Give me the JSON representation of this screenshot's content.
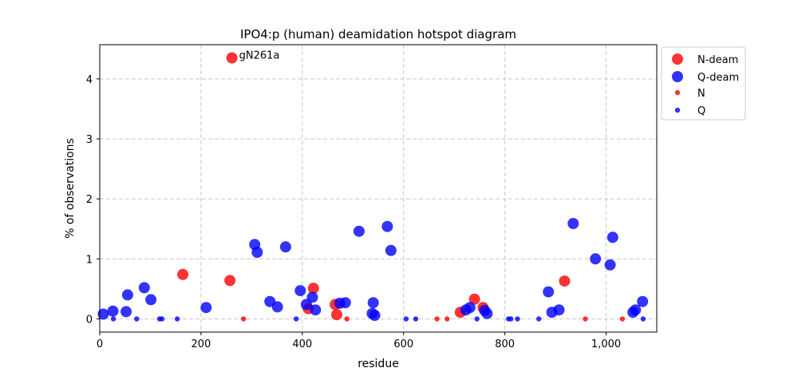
{
  "chart_data": {
    "type": "scatter",
    "title": "IPO4:p (human) deamidation hotspot diagram",
    "xlabel": "residue",
    "ylabel": "% of observations",
    "xlim": [
      0,
      1100
    ],
    "ylim": [
      -0.22,
      4.57
    ],
    "x_ticks": [
      0,
      200,
      400,
      600,
      800,
      1000
    ],
    "x_tick_labels": [
      "0",
      "200",
      "400",
      "600",
      "800",
      "1,000"
    ],
    "y_ticks": [
      0,
      1,
      2,
      3,
      4
    ],
    "y_tick_labels": [
      "0",
      "1",
      "2",
      "3",
      "4"
    ],
    "grid": true,
    "legend_position": "outside-right-top",
    "annotations": [
      {
        "text": "gN261a",
        "x": 261,
        "y": 4.35
      }
    ],
    "series": [
      {
        "name": "N-deam",
        "color": "#ff0000",
        "marker": "large",
        "points": [
          {
            "x": 164,
            "y": 0.74
          },
          {
            "x": 257,
            "y": 0.64
          },
          {
            "x": 261,
            "y": 4.35
          },
          {
            "x": 412,
            "y": 0.17
          },
          {
            "x": 422,
            "y": 0.51
          },
          {
            "x": 465,
            "y": 0.24
          },
          {
            "x": 468,
            "y": 0.07
          },
          {
            "x": 712,
            "y": 0.11
          },
          {
            "x": 740,
            "y": 0.33
          },
          {
            "x": 757,
            "y": 0.19
          },
          {
            "x": 918,
            "y": 0.63
          }
        ]
      },
      {
        "name": "Q-deam",
        "color": "#0000ff",
        "marker": "large",
        "points": [
          {
            "x": 7,
            "y": 0.08
          },
          {
            "x": 26,
            "y": 0.13
          },
          {
            "x": 52,
            "y": 0.12
          },
          {
            "x": 55,
            "y": 0.4
          },
          {
            "x": 88,
            "y": 0.52
          },
          {
            "x": 101,
            "y": 0.32
          },
          {
            "x": 210,
            "y": 0.19
          },
          {
            "x": 306,
            "y": 1.24
          },
          {
            "x": 311,
            "y": 1.11
          },
          {
            "x": 336,
            "y": 0.29
          },
          {
            "x": 351,
            "y": 0.2
          },
          {
            "x": 367,
            "y": 1.2
          },
          {
            "x": 396,
            "y": 0.47
          },
          {
            "x": 408,
            "y": 0.24
          },
          {
            "x": 420,
            "y": 0.36
          },
          {
            "x": 426,
            "y": 0.15
          },
          {
            "x": 474,
            "y": 0.26
          },
          {
            "x": 485,
            "y": 0.27
          },
          {
            "x": 512,
            "y": 1.46
          },
          {
            "x": 538,
            "y": 0.09
          },
          {
            "x": 540,
            "y": 0.27
          },
          {
            "x": 543,
            "y": 0.06
          },
          {
            "x": 568,
            "y": 1.54
          },
          {
            "x": 575,
            "y": 1.14
          },
          {
            "x": 723,
            "y": 0.15
          },
          {
            "x": 731,
            "y": 0.19
          },
          {
            "x": 760,
            "y": 0.14
          },
          {
            "x": 765,
            "y": 0.09
          },
          {
            "x": 886,
            "y": 0.45
          },
          {
            "x": 893,
            "y": 0.11
          },
          {
            "x": 907,
            "y": 0.15
          },
          {
            "x": 935,
            "y": 1.59
          },
          {
            "x": 979,
            "y": 1.0
          },
          {
            "x": 1008,
            "y": 0.9
          },
          {
            "x": 1013,
            "y": 1.36
          },
          {
            "x": 1053,
            "y": 0.11
          },
          {
            "x": 1058,
            "y": 0.15
          },
          {
            "x": 1072,
            "y": 0.29
          }
        ]
      },
      {
        "name": "N",
        "color": "#ff0000",
        "marker": "small",
        "points": [
          {
            "x": 284,
            "y": 0
          },
          {
            "x": 488,
            "y": 0
          },
          {
            "x": 666,
            "y": 0
          },
          {
            "x": 686,
            "y": 0
          },
          {
            "x": 959,
            "y": 0
          },
          {
            "x": 1032,
            "y": 0
          }
        ]
      },
      {
        "name": "Q",
        "color": "#0000ff",
        "marker": "small",
        "points": [
          {
            "x": 27,
            "y": 0
          },
          {
            "x": 73,
            "y": 0
          },
          {
            "x": 118,
            "y": 0
          },
          {
            "x": 123,
            "y": 0
          },
          {
            "x": 153,
            "y": 0
          },
          {
            "x": 388,
            "y": 0
          },
          {
            "x": 605,
            "y": 0
          },
          {
            "x": 624,
            "y": 0
          },
          {
            "x": 745,
            "y": 0
          },
          {
            "x": 807,
            "y": 0
          },
          {
            "x": 812,
            "y": 0
          },
          {
            "x": 825,
            "y": 0
          },
          {
            "x": 867,
            "y": 0
          },
          {
            "x": 1073,
            "y": 0
          }
        ]
      }
    ]
  }
}
